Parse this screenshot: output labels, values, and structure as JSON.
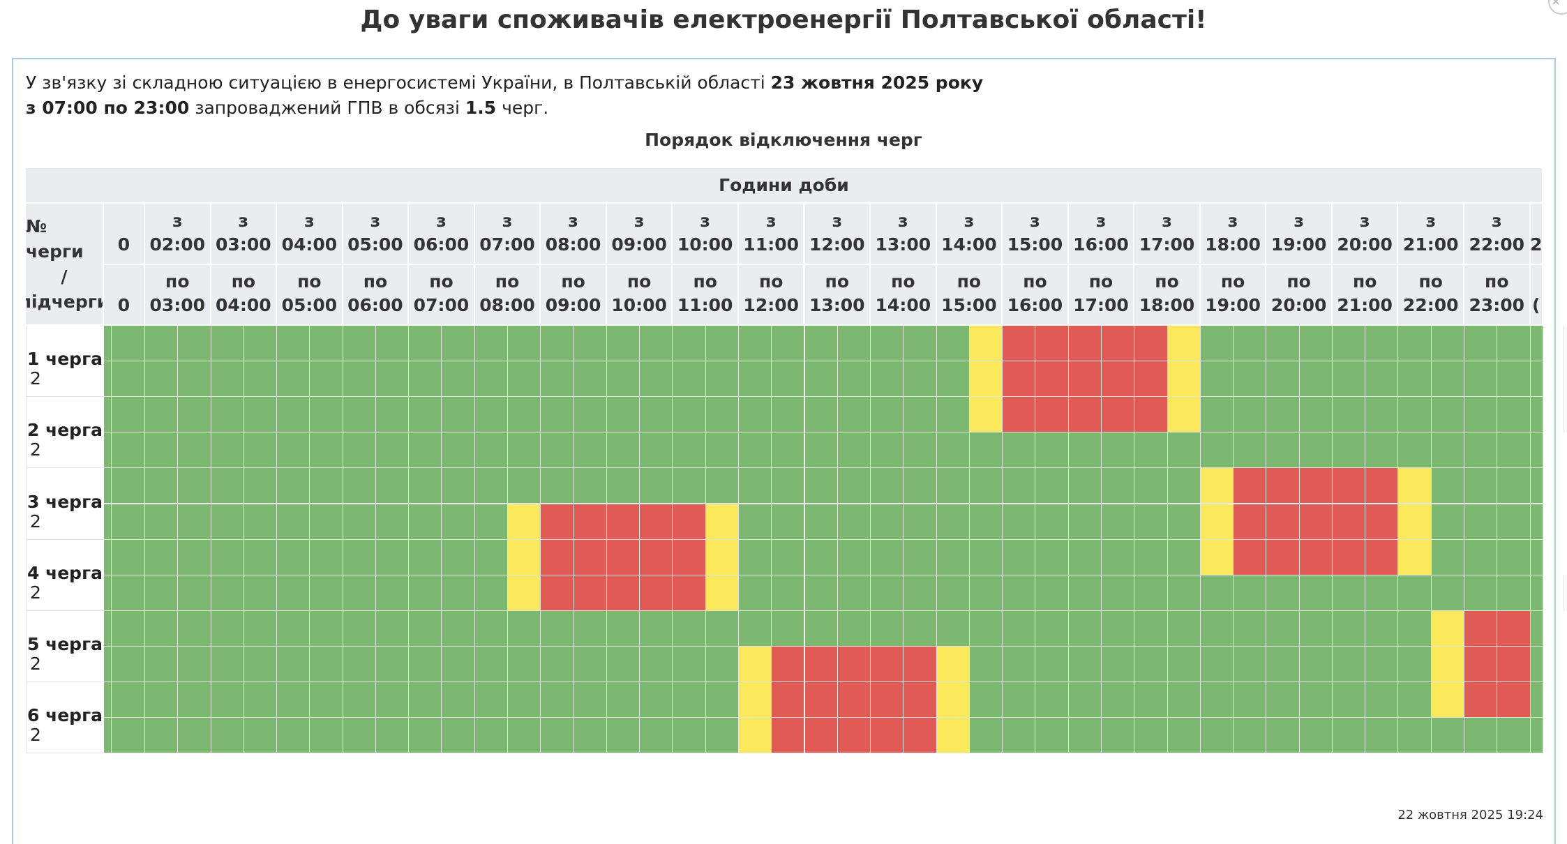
{
  "header": {
    "title": "До уваги споживачів електроенергії Полтавської області!"
  },
  "notice": {
    "text1": "У зв'язку зі складною ситуацією в енергосистемі України, в Полтавській області ",
    "date": "23 жовтня 2025 року",
    "period": "з 07:00 по 23:00",
    "text2": " запроваджений ГПВ в обсязі ",
    "amount": "1.5",
    "text3": " черг."
  },
  "table": {
    "caption": "Порядок відключення черг",
    "group_header": "Години доби",
    "row_header": [
      "№ черги",
      "/",
      "підчерги"
    ],
    "columns": [
      {
        "from": "0",
        "to": "0"
      },
      {
        "from_prefix": "з",
        "from": "02:00",
        "to_prefix": "по",
        "to": "03:00"
      },
      {
        "from_prefix": "з",
        "from": "03:00",
        "to_prefix": "по",
        "to": "04:00"
      },
      {
        "from_prefix": "з",
        "from": "04:00",
        "to_prefix": "по",
        "to": "05:00"
      },
      {
        "from_prefix": "з",
        "from": "05:00",
        "to_prefix": "по",
        "to": "06:00"
      },
      {
        "from_prefix": "з",
        "from": "06:00",
        "to_prefix": "по",
        "to": "07:00"
      },
      {
        "from_prefix": "з",
        "from": "07:00",
        "to_prefix": "по",
        "to": "08:00"
      },
      {
        "from_prefix": "з",
        "from": "08:00",
        "to_prefix": "по",
        "to": "09:00"
      },
      {
        "from_prefix": "з",
        "from": "09:00",
        "to_prefix": "по",
        "to": "10:00"
      },
      {
        "from_prefix": "з",
        "from": "10:00",
        "to_prefix": "по",
        "to": "11:00"
      },
      {
        "from_prefix": "з",
        "from": "11:00",
        "to_prefix": "по",
        "to": "12:00"
      },
      {
        "from_prefix": "з",
        "from": "12:00",
        "to_prefix": "по",
        "to": "13:00"
      },
      {
        "from_prefix": "з",
        "from": "13:00",
        "to_prefix": "по",
        "to": "14:00"
      },
      {
        "from_prefix": "з",
        "from": "14:00",
        "to_prefix": "по",
        "to": "15:00"
      },
      {
        "from_prefix": "з",
        "from": "15:00",
        "to_prefix": "по",
        "to": "16:00"
      },
      {
        "from_prefix": "з",
        "from": "16:00",
        "to_prefix": "по",
        "to": "17:00"
      },
      {
        "from_prefix": "з",
        "from": "17:00",
        "to_prefix": "по",
        "to": "18:00"
      },
      {
        "from_prefix": "з",
        "from": "18:00",
        "to_prefix": "по",
        "to": "19:00"
      },
      {
        "from_prefix": "з",
        "from": "19:00",
        "to_prefix": "по",
        "to": "20:00"
      },
      {
        "from_prefix": "з",
        "from": "20:00",
        "to_prefix": "по",
        "to": "21:00"
      },
      {
        "from_prefix": "з",
        "from": "21:00",
        "to_prefix": "по",
        "to": "22:00"
      },
      {
        "from_prefix": "з",
        "from": "22:00",
        "to_prefix": "по",
        "to": "23:00"
      },
      {
        "from": "2",
        "to": "("
      }
    ],
    "colors": {
      "g": "#7db871",
      "y": "#fbe95b",
      "r": "#e05b55"
    },
    "queues": [
      {
        "label": "1 черга",
        "sub": [
          {
            "cells": "gggggggggggggggggggggggggggyrrrrrygggggggggggg"
          },
          {
            "label": "2",
            "cells": "gggggggggggggggggggggggggggyrrrrrygggggggggggg"
          }
        ]
      },
      {
        "label": "2 черга",
        "sub": [
          {
            "cells": "gggggggggggggggggggggggggggyrrrrrygggggggggggg"
          },
          {
            "label": "2",
            "cells": "ggggggggggggggggggggggggggggggggggggggggggggg"
          }
        ]
      },
      {
        "label": "3 черга",
        "sub": [
          {
            "cells": "ggggggggggggggggggggggggggggggggggyrrrrrygggg"
          },
          {
            "label": "2",
            "cells": "gggggggggggggyrrrrryggggggggggggggyrrrrrygggg"
          }
        ]
      },
      {
        "label": "4 черга",
        "sub": [
          {
            "cells": "gggggggggggggyrrrrryggggggggggggggyrrrrrygggg"
          },
          {
            "label": "2",
            "cells": "gggggggggggggyrrrrrygggggggggggggggggggggggggg"
          }
        ]
      },
      {
        "label": "5 черга",
        "sub": [
          {
            "cells": "gggggggggggggggggggggggggggggggggggggggggyrrg"
          },
          {
            "label": "2",
            "cells": "ggggggggggggggggggggyrrrrryggggggggggggggyrrg"
          }
        ]
      },
      {
        "label": "6 черга",
        "sub": [
          {
            "cells": "ggggggggggggggggggggyrrrrryggggggggggggggyrrg"
          },
          {
            "label": "2",
            "cells": "ggggggggggggggggggggyrrrrrygggggggggggggggggg"
          }
        ]
      }
    ]
  },
  "footer": {
    "updated": "22 жовтня 2025 19:24"
  }
}
